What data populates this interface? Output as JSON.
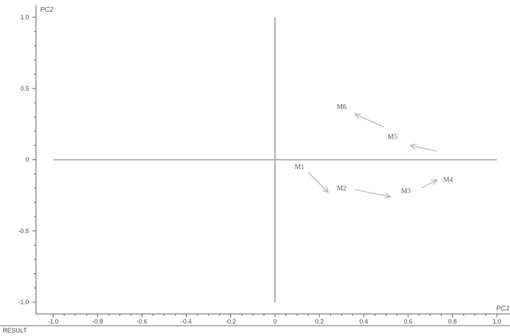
{
  "chart_data": {
    "type": "scatter",
    "xlabel": "PC1",
    "ylabel": "PC2",
    "xlim": [
      -1.0,
      1.0
    ],
    "ylim": [
      -1.0,
      1.0
    ],
    "xticks": [
      "-1.0",
      "-0.8",
      "-0.6",
      "-0.4",
      "-0.2",
      "0",
      "0.2",
      "0.4",
      "0.6",
      "0.8",
      "1.0"
    ],
    "yticks": [
      "1.0",
      "0.5",
      "0",
      "-0.5",
      "-1.0"
    ],
    "grid": false,
    "points": [
      {
        "label": "M1",
        "x": 0.11,
        "y": -0.05
      },
      {
        "label": "M2",
        "x": 0.3,
        "y": -0.2
      },
      {
        "label": "M3",
        "x": 0.59,
        "y": -0.22
      },
      {
        "label": "M4",
        "x": 0.78,
        "y": -0.14
      },
      {
        "label": "M5",
        "x": 0.53,
        "y": 0.16
      },
      {
        "label": "M6",
        "x": 0.3,
        "y": 0.37
      }
    ],
    "arrows": [
      {
        "from": [
          0.15,
          -0.09
        ],
        "to": [
          0.24,
          -0.23
        ]
      },
      {
        "from": [
          0.36,
          -0.21
        ],
        "to": [
          0.52,
          -0.26
        ]
      },
      {
        "from": [
          0.66,
          -0.2
        ],
        "to": [
          0.73,
          -0.14
        ]
      },
      {
        "from": [
          0.73,
          0.06
        ],
        "to": [
          0.61,
          0.1
        ]
      },
      {
        "from": [
          0.49,
          0.23
        ],
        "to": [
          0.36,
          0.32
        ]
      }
    ]
  },
  "footer": {
    "label": "RESULT"
  }
}
